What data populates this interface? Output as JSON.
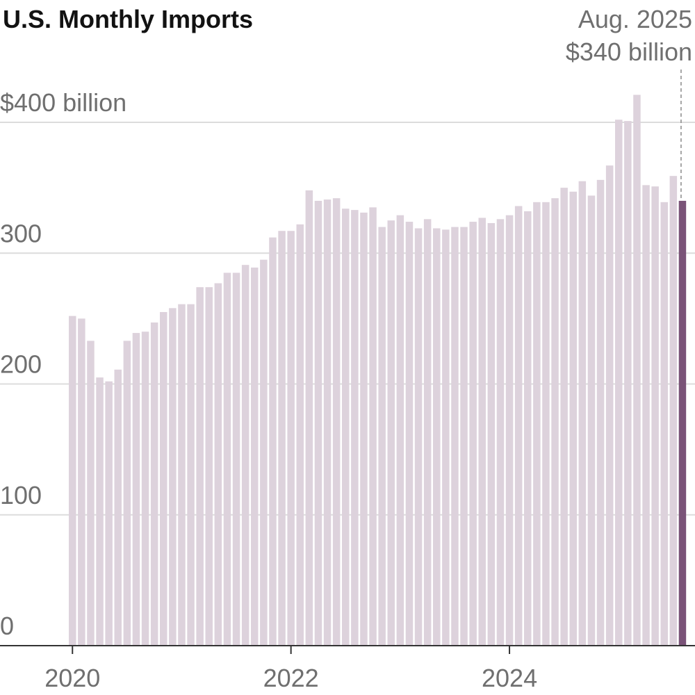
{
  "chart_data": {
    "type": "bar",
    "title": "U.S. Monthly Imports",
    "ylabel": "",
    "xlabel": "",
    "ylim": [
      0,
      400
    ],
    "grid": true,
    "yticks": [
      {
        "value": 0,
        "label": "0"
      },
      {
        "value": 100,
        "label": "100"
      },
      {
        "value": 200,
        "label": "200"
      },
      {
        "value": 300,
        "label": "300"
      },
      {
        "value": 400,
        "label": "$400 billion"
      }
    ],
    "xticks": [
      {
        "date": "2020-01",
        "label": "2020"
      },
      {
        "date": "2022-01",
        "label": "2022"
      },
      {
        "date": "2024-01",
        "label": "2024"
      }
    ],
    "categories": [
      "2020-01",
      "2020-02",
      "2020-03",
      "2020-04",
      "2020-05",
      "2020-06",
      "2020-07",
      "2020-08",
      "2020-09",
      "2020-10",
      "2020-11",
      "2020-12",
      "2021-01",
      "2021-02",
      "2021-03",
      "2021-04",
      "2021-05",
      "2021-06",
      "2021-07",
      "2021-08",
      "2021-09",
      "2021-10",
      "2021-11",
      "2021-12",
      "2022-01",
      "2022-02",
      "2022-03",
      "2022-04",
      "2022-05",
      "2022-06",
      "2022-07",
      "2022-08",
      "2022-09",
      "2022-10",
      "2022-11",
      "2022-12",
      "2023-01",
      "2023-02",
      "2023-03",
      "2023-04",
      "2023-05",
      "2023-06",
      "2023-07",
      "2023-08",
      "2023-09",
      "2023-10",
      "2023-11",
      "2023-12",
      "2024-01",
      "2024-02",
      "2024-03",
      "2024-04",
      "2024-05",
      "2024-06",
      "2024-07",
      "2024-08",
      "2024-09",
      "2024-10",
      "2024-11",
      "2024-12",
      "2025-01",
      "2025-02",
      "2025-03",
      "2025-04",
      "2025-05",
      "2025-06",
      "2025-07",
      "2025-08"
    ],
    "values": [
      252,
      250,
      233,
      205,
      202,
      211,
      233,
      239,
      240,
      247,
      255,
      258,
      261,
      261,
      274,
      274,
      277,
      285,
      285,
      291,
      289,
      295,
      312,
      317,
      317,
      322,
      348,
      340,
      341,
      342,
      334,
      333,
      331,
      335,
      320,
      325,
      329,
      324,
      319,
      326,
      319,
      318,
      320,
      320,
      324,
      327,
      323,
      326,
      329,
      336,
      332,
      339,
      339,
      342,
      350,
      347,
      355,
      344,
      356,
      367,
      402,
      401,
      421,
      352,
      351,
      339,
      359,
      340
    ],
    "colors": {
      "bar": "#ddd2dc",
      "highlight": "#7a5378",
      "grid": "#dcdcdc",
      "axis": "#333333"
    },
    "annotation": {
      "date_label": "Aug. 2025",
      "value_label": "$340 billion"
    }
  }
}
